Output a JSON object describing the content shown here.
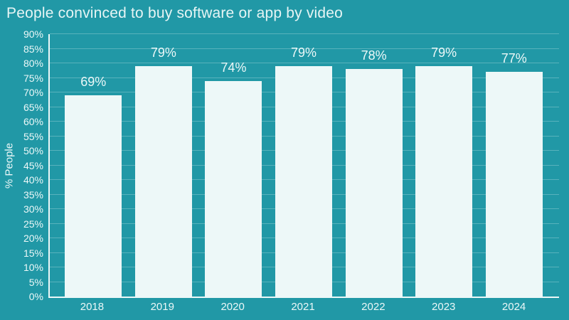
{
  "chart_data": {
    "type": "bar",
    "title": "People convinced to buy software or app by video",
    "xlabel": "",
    "ylabel": "% People",
    "categories": [
      "2018",
      "2019",
      "2020",
      "2021",
      "2022",
      "2023",
      "2024"
    ],
    "values": [
      69,
      79,
      74,
      79,
      78,
      79,
      77
    ],
    "value_labels": [
      "69%",
      "79%",
      "74%",
      "79%",
      "78%",
      "79%",
      "77%"
    ],
    "ylim": [
      0,
      90
    ],
    "ytick_step": 5,
    "ytick_labels": [
      "0%",
      "5%",
      "10%",
      "15%",
      "20%",
      "25%",
      "30%",
      "35%",
      "40%",
      "45%",
      "50%",
      "55%",
      "60%",
      "65%",
      "70%",
      "75%",
      "80%",
      "85%",
      "90%"
    ],
    "grid": "horizontal",
    "legend": null,
    "colors": {
      "background": "#2198a6",
      "bar": "#edf8f8",
      "gridline": "rgba(255,255,255,0.25)",
      "axis": "#ecf8f8",
      "text": "#ecf8f8",
      "title_text": "#e6f5f5"
    }
  }
}
